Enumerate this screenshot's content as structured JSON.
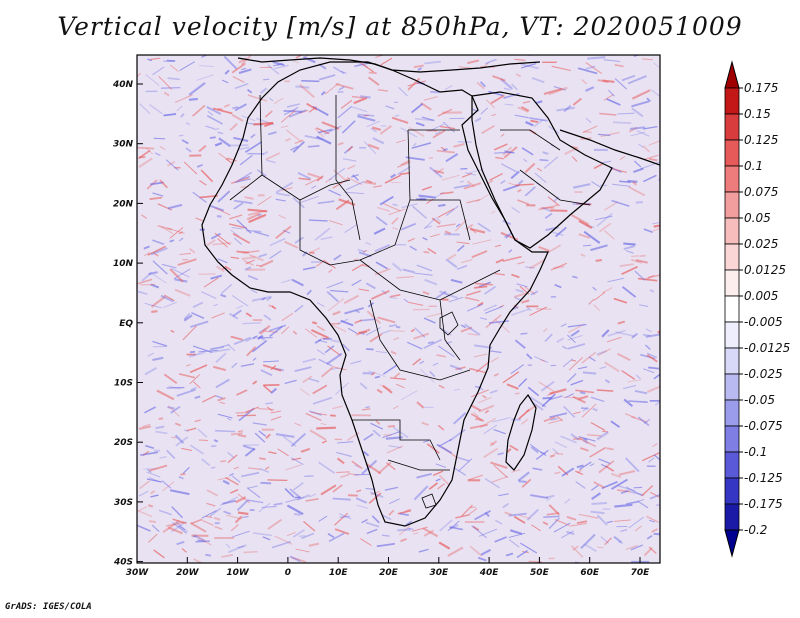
{
  "title": "Vertical velocity [m/s] at 850hPa, VT: 2020051009",
  "footer": "GrADS: IGES/COLA",
  "axes": {
    "lat_labels": [
      "40N",
      "30N",
      "20N",
      "10N",
      "EQ",
      "10S",
      "20S",
      "30S",
      "40S"
    ],
    "lon_labels": [
      "30W",
      "20W",
      "10W",
      "0",
      "10E",
      "20E",
      "30E",
      "40E",
      "50E",
      "60E",
      "70E"
    ]
  },
  "colorbar": {
    "levels": [
      "0.175",
      "0.15",
      "0.125",
      "0.1",
      "0.075",
      "0.05",
      "0.025",
      "0.0125",
      "0.005",
      "-0.005",
      "-0.0125",
      "-0.025",
      "-0.05",
      "-0.075",
      "-0.1",
      "-0.125",
      "-0.175",
      "-0.2"
    ],
    "colors": [
      "#a00000",
      "#c41818",
      "#d93c3c",
      "#e65a5a",
      "#ee7c7c",
      "#f39e9e",
      "#f7bcbc",
      "#fad6d6",
      "#fdeeee",
      "#ffffff",
      "#eeeefc",
      "#d8d8f8",
      "#babaf2",
      "#9c9cec",
      "#7e7ee4",
      "#5a5ad8",
      "#3636c4",
      "#1a1aa6",
      "#000090"
    ]
  },
  "colors": {
    "red": "#e85858",
    "blue": "#6a6ae6",
    "background": "#e8e2f2"
  }
}
